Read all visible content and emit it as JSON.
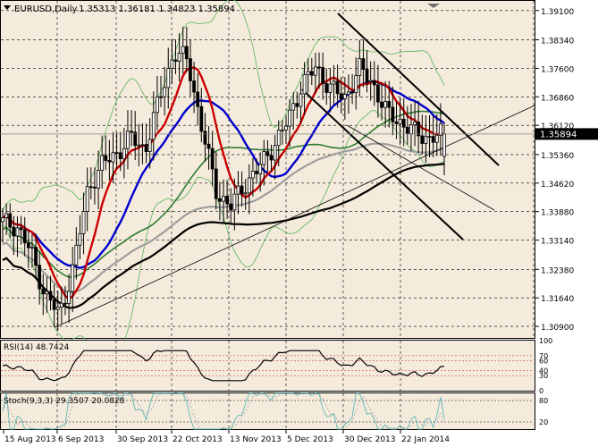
{
  "window": {
    "title": "EURUSD,Daily",
    "ohlc": "1.35313 1.36181 1.34823 1.35894"
  },
  "colors": {
    "background": "#f5ebdc",
    "axis": "#000000",
    "grid": "#000000",
    "ma_fast": "#cc0000",
    "ma_mid": "#0000cc",
    "ma_green": "#2e7d32",
    "ma_grey": "#9e9e9e",
    "ma_black": "#000000",
    "bands": "#66bb66",
    "candle": "#000000",
    "price_tag": "#000000",
    "rsi": "#000000",
    "stoch_main": "#5fb8b8",
    "stoch_signal": "#a0a0a0"
  },
  "price_axis": {
    "min": 1.306,
    "max": 1.3935,
    "ticks": [
      "1.39100",
      "1.38340",
      "1.37600",
      "1.36860",
      "1.36120",
      "1.35360",
      "1.34620",
      "1.33880",
      "1.33140",
      "1.32380",
      "1.31640",
      "1.30900"
    ],
    "current": "1.35894",
    "current_value": 1.35894
  },
  "time_axis": {
    "labels": [
      "15 Aug 2013",
      "6 Sep 2013",
      "30 Sep 2013",
      "22 Oct 2013",
      "13 Nov 2013",
      "5 Dec 2013",
      "30 Dec 2013",
      "22 Jan 2014"
    ]
  },
  "rsi_panel": {
    "label": "RSI(14) 48.7424",
    "ticks": [
      "100",
      "70",
      "60",
      "40",
      "30",
      "0"
    ]
  },
  "stoch_panel": {
    "label": "Stoch(9,3,3) 29.3507 20.0828",
    "ticks": [
      "80",
      "20"
    ]
  },
  "chart_data": {
    "type": "candlestick",
    "symbol": "EURUSD",
    "timeframe": "Daily",
    "last_bar": {
      "open": 1.35313,
      "high": 1.36181,
      "low": 1.34823,
      "close": 1.35894
    },
    "ylim": [
      1.306,
      1.3935
    ],
    "x_tick_labels": [
      "15 Aug 2013",
      "6 Sep 2013",
      "30 Sep 2013",
      "22 Oct 2013",
      "13 Nov 2013",
      "5 Dec 2013",
      "30 Dec 2013",
      "22 Jan 2014"
    ],
    "close_anchors": {
      "dates": [
        "15 Aug 2013",
        "22 Aug 2013",
        "29 Aug 2013",
        "3 Sep 2013",
        "6 Sep 2013",
        "12 Sep 2013",
        "18 Sep 2013",
        "24 Sep 2013",
        "30 Sep 2013",
        "5 Oct 2013",
        "10 Oct 2013",
        "17 Oct 2013",
        "22 Oct 2013",
        "25 Oct 2013",
        "30 Oct 2013",
        "5 Nov 2013",
        "8 Nov 2013",
        "13 Nov 2013",
        "18 Nov 2013",
        "25 Nov 2013",
        "2 Dec 2013",
        "5 Dec 2013",
        "10 Dec 2013",
        "16 Dec 2013",
        "20 Dec 2013",
        "24 Dec 2013",
        "30 Dec 2013",
        "6 Jan 2014",
        "10 Jan 2014",
        "16 Jan 2014",
        "22 Jan 2014",
        "28 Jan 2014"
      ],
      "values": [
        1.336,
        1.335,
        1.328,
        1.317,
        1.312,
        1.325,
        1.345,
        1.351,
        1.354,
        1.358,
        1.355,
        1.368,
        1.38,
        1.378,
        1.36,
        1.344,
        1.34,
        1.346,
        1.35,
        1.356,
        1.362,
        1.372,
        1.376,
        1.371,
        1.368,
        1.376,
        1.372,
        1.364,
        1.362,
        1.359,
        1.358,
        1.3589
      ]
    },
    "moving_averages": [
      {
        "color": "red"
      },
      {
        "color": "blue"
      },
      {
        "color": "green"
      },
      {
        "color": "grey"
      },
      {
        "color": "black"
      }
    ],
    "rsi": {
      "period": 14,
      "value": 48.7424,
      "levels": [
        30,
        40,
        60,
        70
      ]
    },
    "stochastic": {
      "params": "9,3,3",
      "main": 29.3507,
      "signal": 20.0828,
      "levels": [
        20,
        80
      ]
    },
    "grid": true
  }
}
